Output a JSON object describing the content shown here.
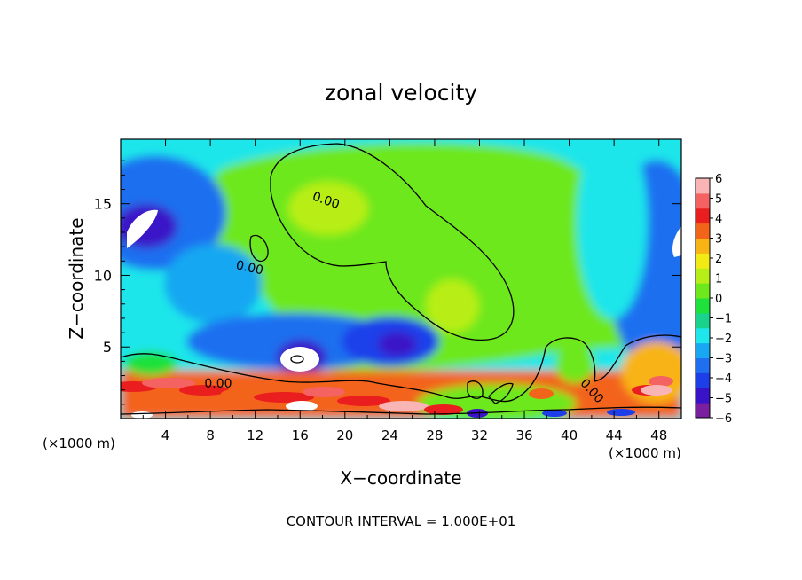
{
  "chart_data": {
    "type": "heatmap",
    "title": "zonal velocity",
    "xlabel": "X−coordinate",
    "ylabel": "Z−coordinate",
    "x_unit_left": "(×1000 m)",
    "x_unit_right": "(×1000 m)",
    "xlim": [
      0,
      50
    ],
    "ylim": [
      0,
      19.5
    ],
    "x_ticks": [
      4,
      8,
      12,
      16,
      20,
      24,
      28,
      32,
      36,
      40,
      44,
      48
    ],
    "x_tick_labels": [
      "4",
      "8",
      "12",
      "16",
      "20",
      "24",
      "28",
      "32",
      "36",
      "40",
      "44",
      "48"
    ],
    "y_ticks": [
      5,
      10,
      15
    ],
    "y_tick_labels": [
      "5",
      "10",
      "15"
    ],
    "colorbar": {
      "min": -6,
      "max": 6,
      "ticks": [
        6,
        5,
        4,
        3,
        2,
        1,
        0,
        -1,
        -2,
        -3,
        -4,
        -5,
        -6
      ],
      "tick_labels": [
        "6",
        "5",
        "4",
        "3",
        "2",
        "1",
        "0",
        "−1",
        "−2",
        "−3",
        "−4",
        "−5",
        "−6"
      ],
      "colors": [
        "#7a1fa0",
        "#3a12c8",
        "#1d3fea",
        "#1f6ff0",
        "#18a7f2",
        "#1fe6ea",
        "#19d38c",
        "#1ee13b",
        "#6de81c",
        "#b8ee18",
        "#f2ea14",
        "#f8b415",
        "#f3641b",
        "#ea1e1e",
        "#f46262",
        "#f9b5b5"
      ]
    },
    "contour_labels": [
      {
        "text": "0.00",
        "x": 18.3,
        "y": 15.2,
        "angle": 20
      },
      {
        "text": "0.00",
        "x": 11.5,
        "y": 10.5,
        "angle": 12
      },
      {
        "text": "0.00",
        "x": 8.7,
        "y": 2.4,
        "angle": 0
      },
      {
        "text": "0.00",
        "x": 42,
        "y": 1.9,
        "angle": 48
      }
    ],
    "footer": "CONTOUR INTERVAL = 1.000E+01"
  },
  "colors": {
    "axis": "#000000",
    "contour": "#000000",
    "background": "#ffffff"
  }
}
